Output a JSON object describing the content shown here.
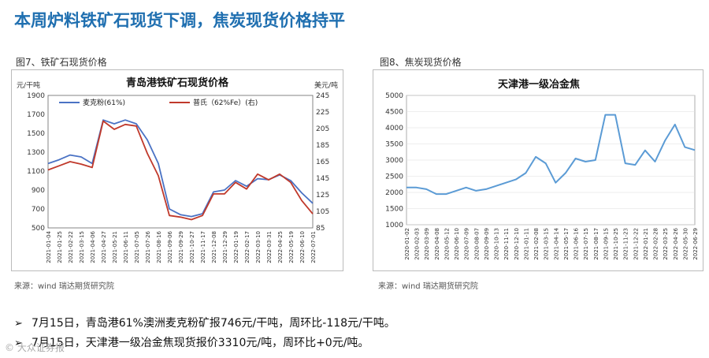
{
  "page": {
    "title": "本周炉料铁矿石现货下调，焦炭现货价格持平",
    "left_caption": "图7、铁矿石现货价格",
    "right_caption": "图8、焦炭现货价格",
    "left_source": "来源：wind   瑞达期货研究院",
    "right_source": "来源：wind   瑞达期货研究院",
    "bullets": [
      "7月15日，青岛港61%澳洲麦克粉矿报746元/干吨，周环比-118元/干吨。",
      "7月15日，天津港一级冶金焦现货报价3310元/吨，周环比+0元/吨。"
    ],
    "bullet_marker": "➢",
    "watermark": "© 大众证券报"
  },
  "chart_data": [
    {
      "type": "line",
      "title": "青岛港铁矿石现货价格",
      "ylabel_left": "元/干吨",
      "ylabel_right": "美元/吨",
      "ylim_left": [
        500,
        1900
      ],
      "yticks_left": [
        500,
        700,
        900,
        1100,
        1300,
        1500,
        1700,
        1900
      ],
      "ylim_right": [
        85,
        245
      ],
      "yticks_right": [
        85,
        105,
        125,
        145,
        165,
        185,
        205,
        225,
        245
      ],
      "legend_position": "top",
      "categories": [
        "2021-01-04",
        "2021-01-25",
        "2021-02-22",
        "2021-03-15",
        "2021-04-06",
        "2021-04-27",
        "2021-05-21",
        "2021-06-11",
        "2021-07-05",
        "2021-07-26",
        "2021-08-16",
        "2021-09-06",
        "2021-09-29",
        "2021-10-27",
        "2021-11-17",
        "2021-12-08",
        "2021-12-29",
        "2022-01-19",
        "2022-02-17",
        "2022-03-10",
        "2022-03-31",
        "2022-04-25",
        "2022-05-19",
        "2022-06-10",
        "2022-07-01"
      ],
      "series": [
        {
          "name": "麦克粉(61%)",
          "axis": "left",
          "color": "#4a72c4",
          "values": [
            1180,
            1220,
            1270,
            1250,
            1180,
            1640,
            1600,
            1640,
            1600,
            1430,
            1180,
            700,
            640,
            620,
            650,
            880,
            900,
            1000,
            940,
            1020,
            1010,
            1060,
            1000,
            870,
            760
          ]
        },
        {
          "name": "普氏（62%Fe）(右)",
          "axis": "right",
          "color": "#c0392b",
          "values": [
            155,
            160,
            165,
            162,
            158,
            214,
            204,
            210,
            208,
            175,
            148,
            100,
            98,
            95,
            100,
            126,
            126,
            140,
            132,
            150,
            143,
            150,
            140,
            118,
            102
          ]
        }
      ]
    },
    {
      "type": "line",
      "title": "天津港一级冶金焦",
      "ylim": [
        1000,
        5000
      ],
      "yticks": [
        1000,
        1500,
        2000,
        2500,
        3000,
        3500,
        4000,
        4500,
        5000
      ],
      "categories": [
        "2020-01-02",
        "2020-02-03",
        "2020-03-09",
        "2020-04-08",
        "2020-05-12",
        "2020-06-10",
        "2020-07-09",
        "2020-08-07",
        "2020-09-09",
        "2020-10-13",
        "2020-11-11",
        "2020-12-10",
        "2021-01-11",
        "2021-02-08",
        "2021-03-15",
        "2021-04-14",
        "2021-05-17",
        "2021-06-16",
        "2021-07-15",
        "2021-08-17",
        "2021-09-15",
        "2021-10-25",
        "2021-11-23",
        "2021-12-22",
        "2022-01-21",
        "2022-02-28",
        "2022-03-25",
        "2022-04-26",
        "2022-05-30",
        "2022-06-29"
      ],
      "series": [
        {
          "name": "",
          "color": "#5b9bd5",
          "values": [
            2150,
            2150,
            2100,
            1950,
            1950,
            2050,
            2150,
            2050,
            2100,
            2200,
            2300,
            2400,
            2600,
            3100,
            2900,
            2300,
            2600,
            3050,
            2950,
            3000,
            4400,
            4400,
            2900,
            2850,
            3300,
            2950,
            3600,
            4100,
            3400,
            3310
          ]
        }
      ]
    }
  ]
}
